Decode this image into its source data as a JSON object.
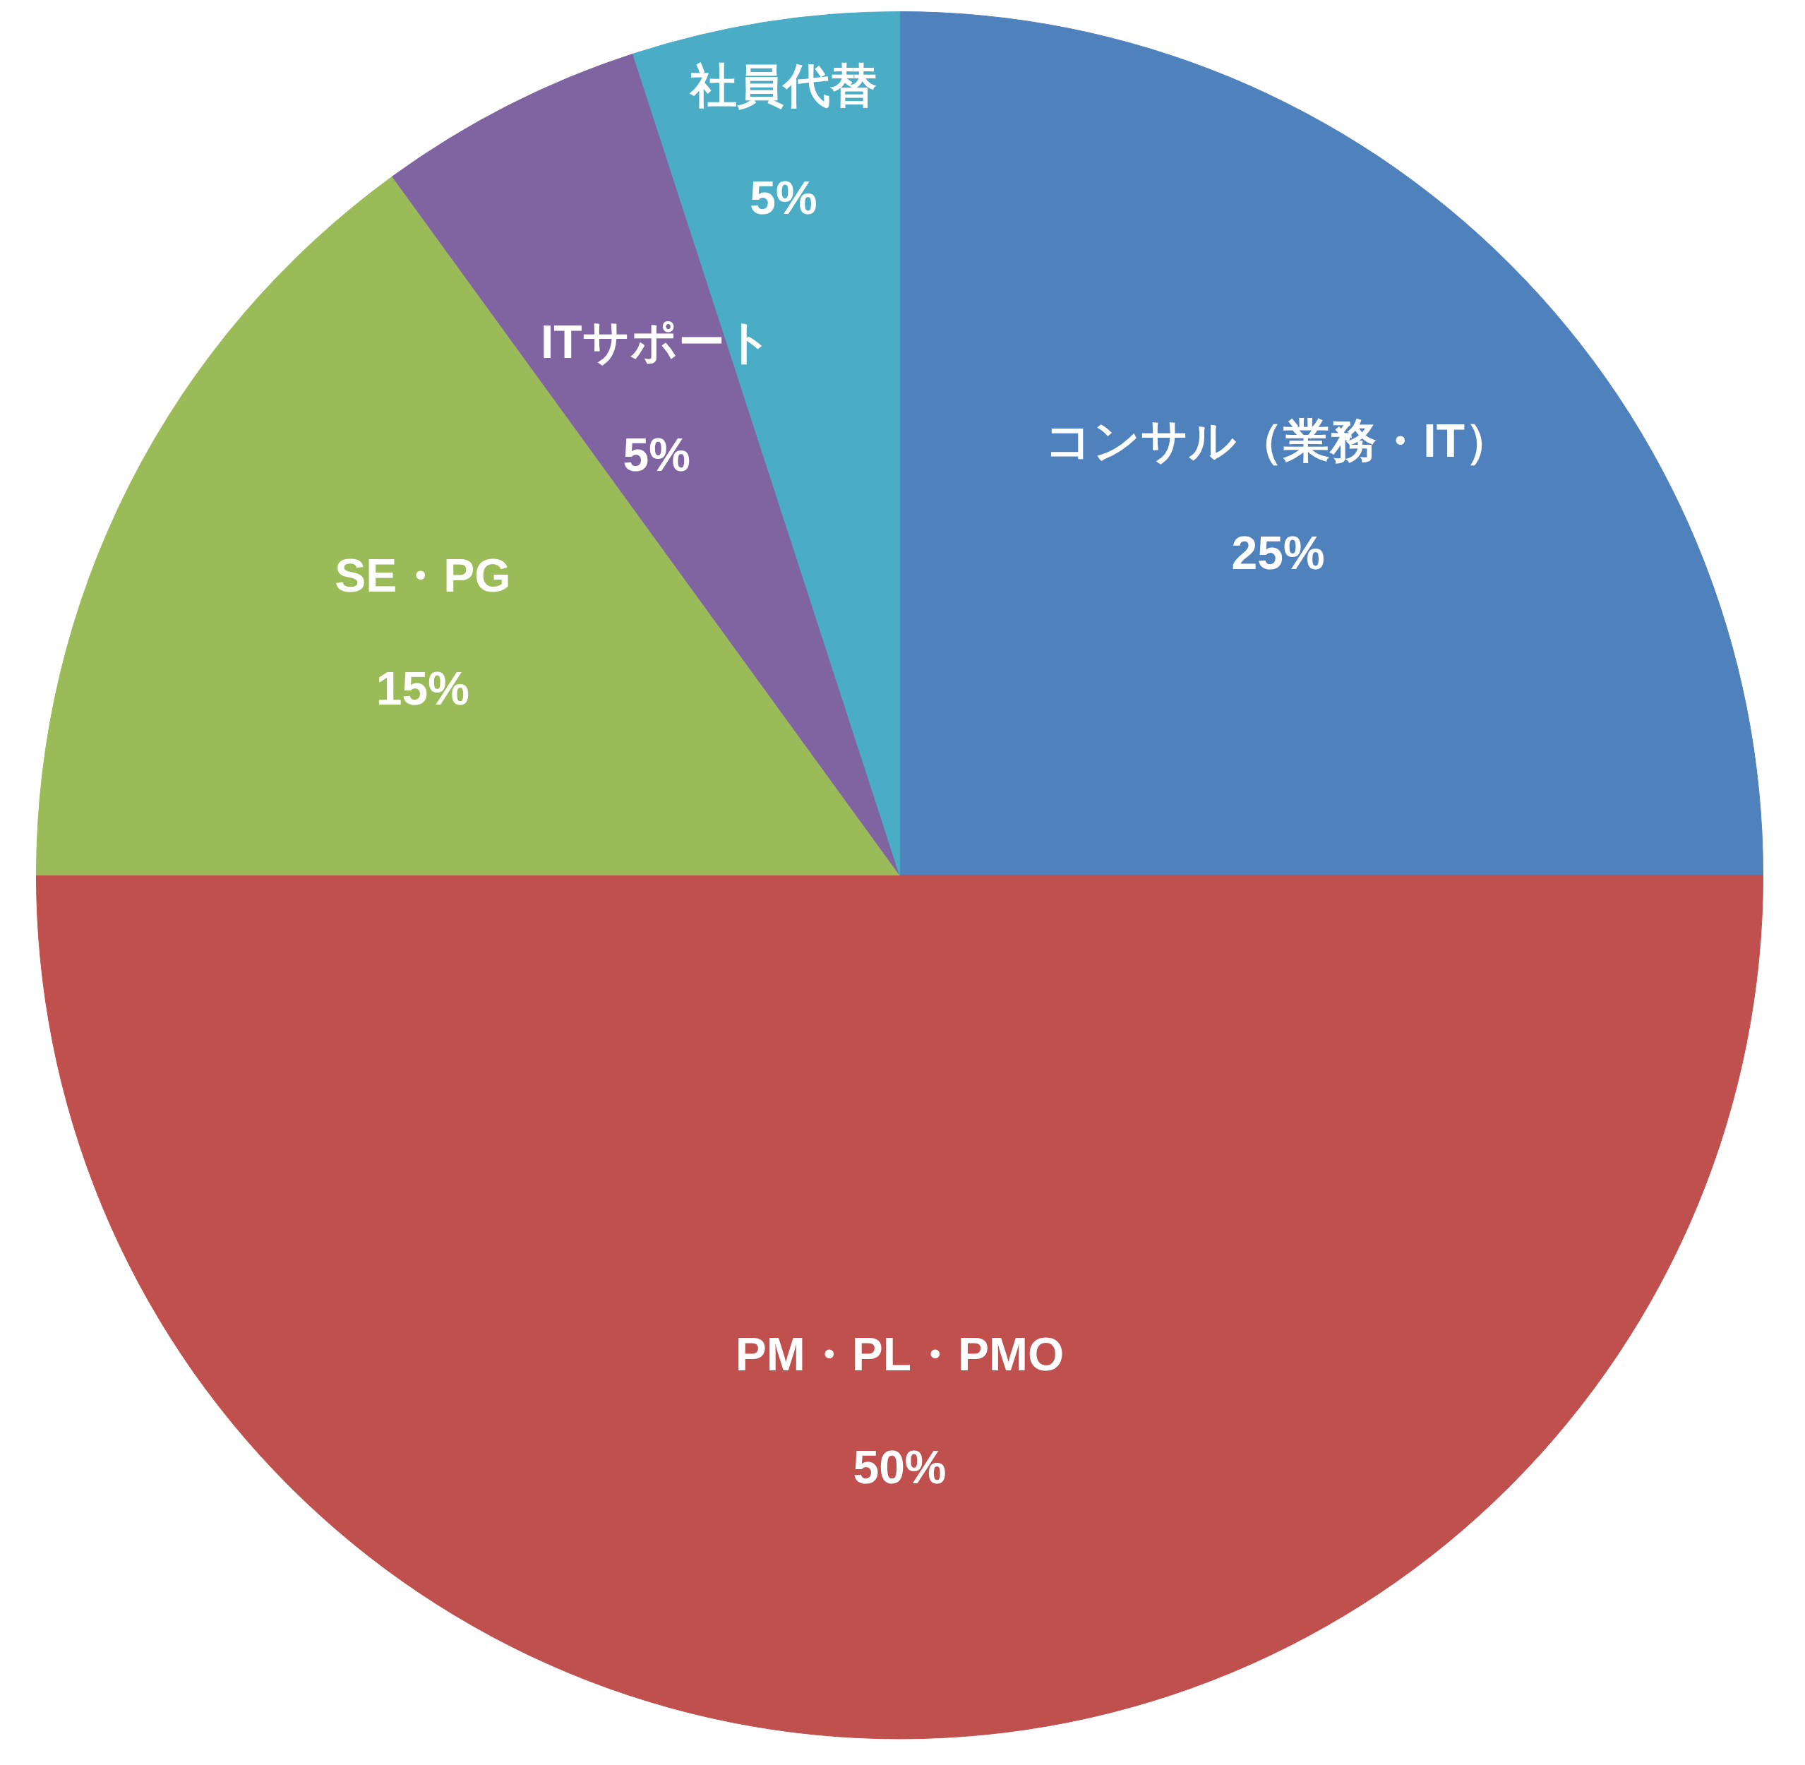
{
  "chart_data": {
    "type": "pie",
    "categories": [
      "コンサル（業務・IT）",
      "PM・PL・PMO",
      "SE・PG",
      "ITサポート",
      "社員代替"
    ],
    "values": [
      25,
      50,
      15,
      5,
      5
    ],
    "value_labels": [
      "25%",
      "50%",
      "15%",
      "5%",
      "5%"
    ],
    "colors": [
      "#4f81bd",
      "#c0504d",
      "#9bbb59",
      "#8064a2",
      "#4bacc6"
    ]
  }
}
